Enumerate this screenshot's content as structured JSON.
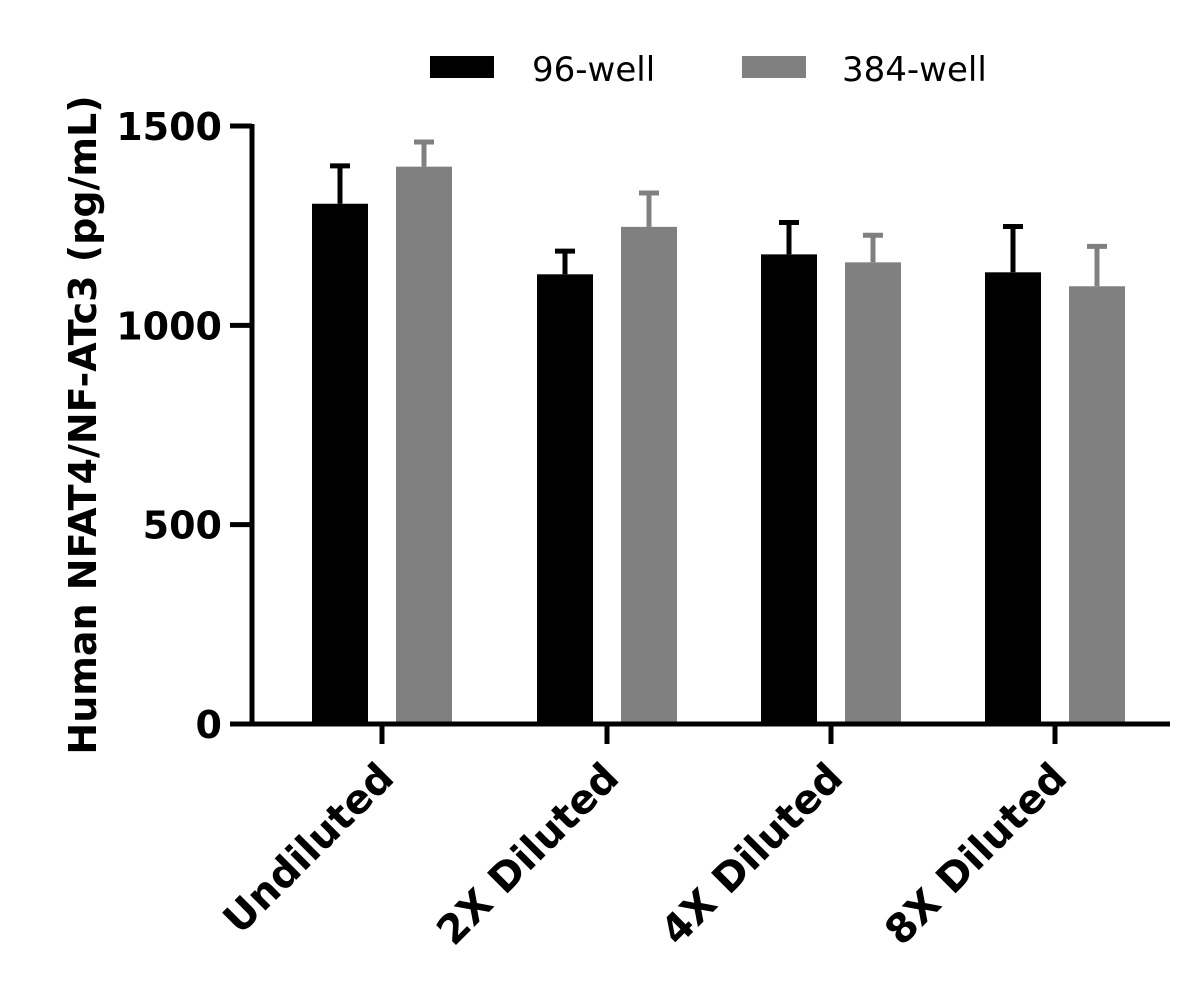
{
  "chart_data": {
    "type": "bar",
    "title": "",
    "xlabel": "",
    "ylabel": "Human NFAT4/NF-ATc3 (pg/mL)",
    "ylim": [
      0,
      1500
    ],
    "yticks": [
      0,
      500,
      1000,
      1500
    ],
    "categories": [
      "Undiluted",
      "2X Diluted",
      "4X Diluted",
      "8X Diluted"
    ],
    "series": [
      {
        "name": "96-well",
        "color": "#000000",
        "values": [
          1305,
          1128,
          1178,
          1133
        ],
        "errors": [
          95,
          58,
          80,
          115
        ]
      },
      {
        "name": "384-well",
        "color": "#808080",
        "values": [
          1398,
          1247,
          1158,
          1098
        ],
        "errors": [
          62,
          85,
          68,
          100
        ]
      }
    ],
    "legend_position": "top-center",
    "grid": false,
    "error_bars": "upper"
  }
}
